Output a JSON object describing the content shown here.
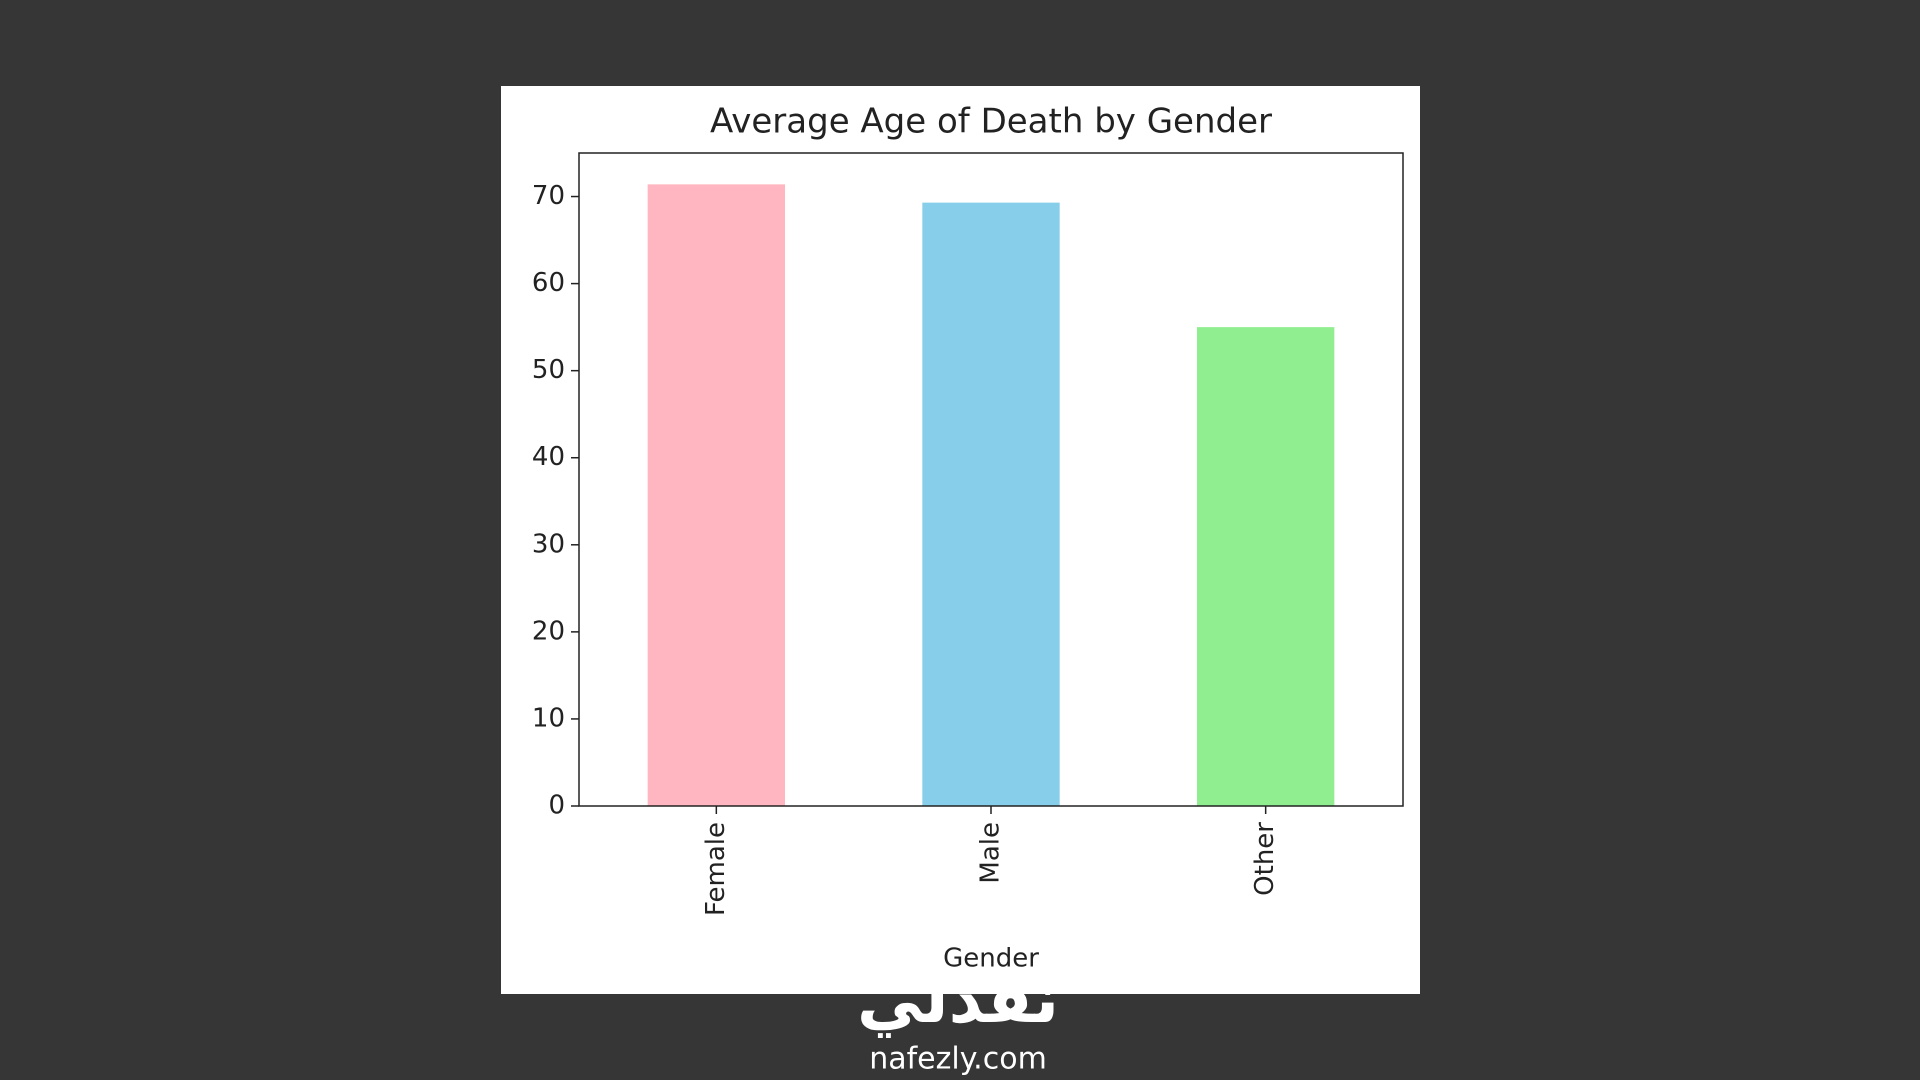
{
  "chart_data": {
    "type": "bar",
    "title": "Average Age of Death by Gender",
    "x_label": "Gender",
    "categories": [
      "Female",
      "Male",
      "Other"
    ],
    "values": [
      71.4,
      69.3,
      55.0
    ],
    "colors": [
      "#ffb6c1",
      "#87ceeb",
      "#90ee90"
    ],
    "ylim": [
      0,
      75
    ],
    "yticks": [
      0,
      10,
      20,
      30,
      40,
      50,
      60,
      70
    ],
    "grid": false
  },
  "watermark": {
    "arabic": "نفذلي",
    "site": "nafezly.com"
  }
}
